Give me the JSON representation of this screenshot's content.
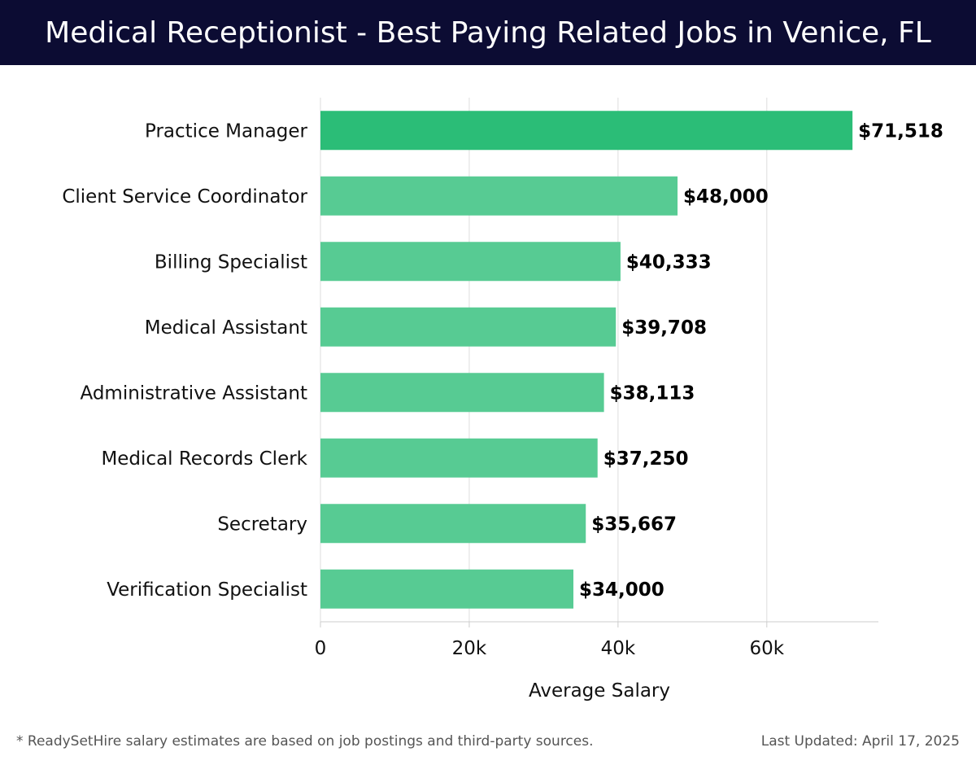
{
  "header": {
    "title": "Medical Receptionist - Best Paying Related Jobs in Venice, FL"
  },
  "colors": {
    "header_bg": "#0c0c33",
    "bar_top": "#2bbd77",
    "bar": "#57cb93",
    "grid": "#dddddd",
    "label_text": "#111111"
  },
  "chart_data": {
    "type": "bar",
    "orientation": "horizontal",
    "categories": [
      "Practice Manager",
      "Client Service Coordinator",
      "Billing Specialist",
      "Medical Assistant",
      "Administrative Assistant",
      "Medical Records Clerk",
      "Secretary",
      "Verification Specialist"
    ],
    "values": [
      71518,
      48000,
      40333,
      39708,
      38113,
      37250,
      35667,
      34000
    ],
    "value_labels": [
      "$71,518",
      "$48,000",
      "$40,333",
      "$39,708",
      "$38,113",
      "$37,250",
      "$35,667",
      "$34,000"
    ],
    "xlabel": "Average Salary",
    "xticks": [
      0,
      20000,
      40000,
      60000
    ],
    "xtick_labels": [
      "0",
      "20k",
      "40k",
      "60k"
    ],
    "xlim": [
      0,
      75000
    ],
    "grid": true
  },
  "footer": {
    "note": "* ReadySetHire salary estimates are based on job postings and third-party sources.",
    "updated": "Last Updated: April 17, 2025"
  }
}
